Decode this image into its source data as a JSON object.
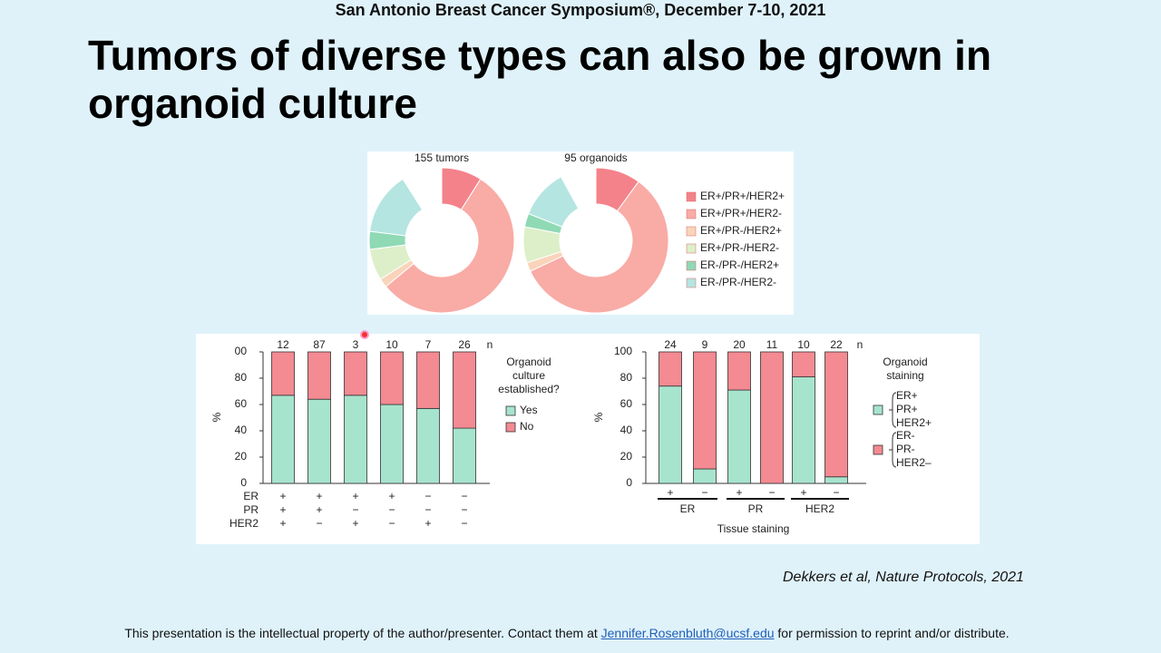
{
  "header": {
    "text": "San Antonio Breast Cancer Symposium®, December 7-10, 2021"
  },
  "title": "Tumors of diverse types can also be grown in organoid culture",
  "citation": "Dekkers et al, Nature Protocols, 2021",
  "footer": {
    "text_before": "This presentation is the intellectual property of the author/presenter. Contact them at ",
    "email": "Jennifer.Rosenbluth@ucsf.edu",
    "text_after": " for permission to reprint and/or distribute."
  },
  "chart_data": [
    {
      "type": "donut",
      "categories": [
        "ER+/PR+/HER2+",
        "ER+/PR+/HER2-",
        "ER+/PR-/HER2+",
        "ER+/PR-/HER2-",
        "ER-/PR-/HER2+",
        "ER-/PR-/HER2-"
      ],
      "colors": [
        "#f4828a",
        "#f9aba6",
        "#f9d4ba",
        "#ddefc9",
        "#8fd9b5",
        "#b4e5e1"
      ],
      "series": [
        {
          "name": "155 tumors",
          "values": [
            9,
            55,
            2,
            7,
            4,
            14
          ]
        },
        {
          "name": "95 organoids",
          "values": [
            10,
            58,
            2,
            8,
            3,
            11
          ]
        }
      ]
    },
    {
      "type": "stacked_bar",
      "categories": [
        null,
        null,
        null,
        null,
        null,
        null
      ],
      "n_label": "n",
      "n": [
        12,
        87,
        3,
        10,
        7,
        26
      ],
      "marker_rows": [
        {
          "name": "ER",
          "values": [
            "+",
            "+",
            "+",
            "+",
            "−",
            "−"
          ]
        },
        {
          "name": "PR",
          "values": [
            "+",
            "+",
            "−",
            "−",
            "−",
            "−"
          ]
        },
        {
          "name": "HER2",
          "values": [
            "+",
            "−",
            "+",
            "−",
            "+",
            "−"
          ]
        }
      ],
      "ylabel": "%",
      "ylim": [
        0,
        100
      ],
      "yticks": [
        0,
        20,
        40,
        60,
        80,
        {
          "value": 100,
          "label": "00"
        }
      ],
      "legend_title": "Organoid culture established?",
      "series": [
        {
          "name": "Yes",
          "color": "#a7e4cd",
          "values": [
            67,
            64,
            67,
            60,
            57,
            42
          ]
        },
        {
          "name": "No",
          "color": "#f48a92",
          "values": [
            33,
            36,
            33,
            40,
            43,
            58
          ]
        }
      ]
    },
    {
      "type": "stacked_bar",
      "categories": [
        "+",
        "−",
        "+",
        "−",
        "+",
        "−"
      ],
      "groups": [
        "ER",
        "PR",
        "HER2"
      ],
      "xlabel": "Tissue staining",
      "n_label": "n",
      "n": [
        24,
        9,
        20,
        11,
        10,
        22
      ],
      "ylabel": "%",
      "ylim": [
        0,
        100
      ],
      "yticks": [
        0,
        20,
        40,
        60,
        80,
        100
      ],
      "legend_title": "Organoid staining",
      "series": [
        {
          "name": "ER+ PR+ HER2+",
          "color": "#a7e4cd",
          "values": [
            74,
            11,
            71,
            0,
            81,
            5
          ]
        },
        {
          "name": "ER- PR- HER2–",
          "color": "#f48a92",
          "values": [
            26,
            89,
            29,
            100,
            19,
            95
          ]
        }
      ]
    }
  ]
}
